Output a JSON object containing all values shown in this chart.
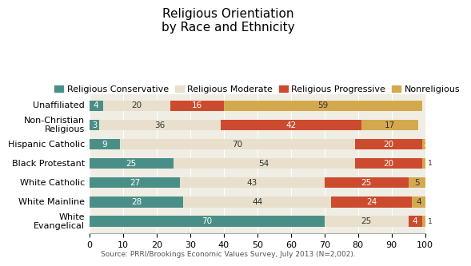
{
  "title": "Religious Orientiation\nby Race and Ethnicity",
  "categories": [
    "White\nEvangelical",
    "White Mainline",
    "White Catholic",
    "Black Protestant",
    "Hispanic Catholic",
    "Non-Christian\nReligious",
    "Unaffiliated"
  ],
  "series": {
    "Religious Conservative": [
      70,
      28,
      27,
      25,
      9,
      3,
      4
    ],
    "Religious Moderate": [
      25,
      44,
      43,
      54,
      70,
      36,
      20
    ],
    "Religious Progressive": [
      4,
      24,
      25,
      20,
      20,
      42,
      16
    ],
    "Nonreligious": [
      1,
      4,
      5,
      1,
      2,
      17,
      59
    ]
  },
  "colors": {
    "Religious Conservative": "#4a8f87",
    "Religious Moderate": "#e8e0cc",
    "Religious Progressive": "#cc4b2e",
    "Nonreligious": "#d4a94e"
  },
  "legend_order": [
    "Religious Conservative",
    "Religious Moderate",
    "Religious Progressive",
    "Nonreligious"
  ],
  "xlim": [
    0,
    100
  ],
  "source": "Source: PRRI/Brookings Economic Values Survey, July 2013 (N=2,002).",
  "chart_bg": "#f0ede4",
  "outer_bg": "#ffffff",
  "bar_height": 0.55,
  "title_fontsize": 11,
  "label_fontsize": 7.5,
  "legend_fontsize": 8,
  "tick_fontsize": 8
}
